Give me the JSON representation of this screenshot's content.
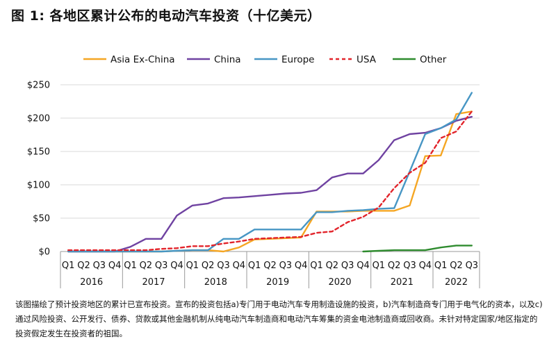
{
  "title": "图 1:  各地区累计公布的电动汽车投资（十亿美元）",
  "footnote": "该图描绘了预计投资地区的累计已宣布投资。宣布的投资包括a)专门用于电动汽车专用制造设施的投资，b)汽车制造商专门用于电气化的资本，以及c)通过风险投资、公开发行、债券、贷款或其他金融机制从纯电动汽车制造商和电动汽车筹集的资金电池制造商或回收商。未针对特定国家/地区指定的投资假定发生在投资者的祖国。",
  "chart_data": {
    "type": "line",
    "quarters": [
      "Q1",
      "Q2",
      "Q3",
      "Q4",
      "Q1",
      "Q2",
      "Q3",
      "Q4",
      "Q1",
      "Q2",
      "Q3",
      "Q4",
      "Q1",
      "Q2",
      "Q3",
      "Q4",
      "Q1",
      "Q2",
      "Q3",
      "Q4",
      "Q1",
      "Q2",
      "Q3",
      "Q4",
      "Q1",
      "Q2",
      "Q3"
    ],
    "years": [
      {
        "label": "2016",
        "quarters": 4
      },
      {
        "label": "2017",
        "quarters": 4
      },
      {
        "label": "2018",
        "quarters": 4
      },
      {
        "label": "2019",
        "quarters": 4
      },
      {
        "label": "2020",
        "quarters": 4
      },
      {
        "label": "2021",
        "quarters": 4
      },
      {
        "label": "2022",
        "quarters": 3
      }
    ],
    "y_ticks": [
      0,
      50,
      100,
      150,
      200,
      250
    ],
    "y_tick_labels": [
      "$0",
      "$50",
      "$100",
      "$150",
      "$200",
      "$250"
    ],
    "ylim": [
      0,
      250
    ],
    "legend_position": "top",
    "grid": "horizontal",
    "series": [
      {
        "name": "Asia Ex-China",
        "color": "#f5a623",
        "dash": false,
        "values": [
          0,
          0,
          0,
          0,
          0,
          0,
          0,
          1,
          2,
          2,
          0,
          6,
          18,
          19,
          20,
          21,
          60,
          60,
          60,
          61,
          61,
          61,
          69,
          143,
          144,
          206,
          210
        ]
      },
      {
        "name": "China",
        "color": "#6f42a1",
        "dash": false,
        "values": [
          0,
          0,
          0,
          0,
          7,
          19,
          19,
          54,
          69,
          72,
          80,
          81,
          83,
          85,
          87,
          88,
          92,
          111,
          117,
          117,
          137,
          167,
          176,
          178,
          185,
          196,
          202
        ]
      },
      {
        "name": "Europe",
        "color": "#4796c4",
        "dash": false,
        "values": [
          0,
          0,
          0,
          0,
          0,
          0,
          0,
          1,
          2,
          2,
          19,
          19,
          33,
          33,
          33,
          33,
          59,
          59,
          61,
          62,
          64,
          65,
          120,
          176,
          185,
          198,
          238
        ]
      },
      {
        "name": "USA",
        "color": "#e2242b",
        "dash": true,
        "values": [
          2,
          2,
          2,
          2,
          2,
          2,
          4,
          5,
          8,
          8,
          12,
          15,
          19,
          20,
          21,
          22,
          28,
          30,
          44,
          52,
          66,
          95,
          118,
          133,
          170,
          180,
          210
        ]
      },
      {
        "name": "Other",
        "color": "#2e8b2e",
        "dash": false,
        "values": [
          null,
          null,
          null,
          null,
          null,
          null,
          null,
          null,
          null,
          null,
          null,
          null,
          null,
          null,
          null,
          null,
          null,
          null,
          null,
          0,
          1,
          2,
          2,
          2,
          6,
          9,
          9
        ]
      }
    ]
  }
}
